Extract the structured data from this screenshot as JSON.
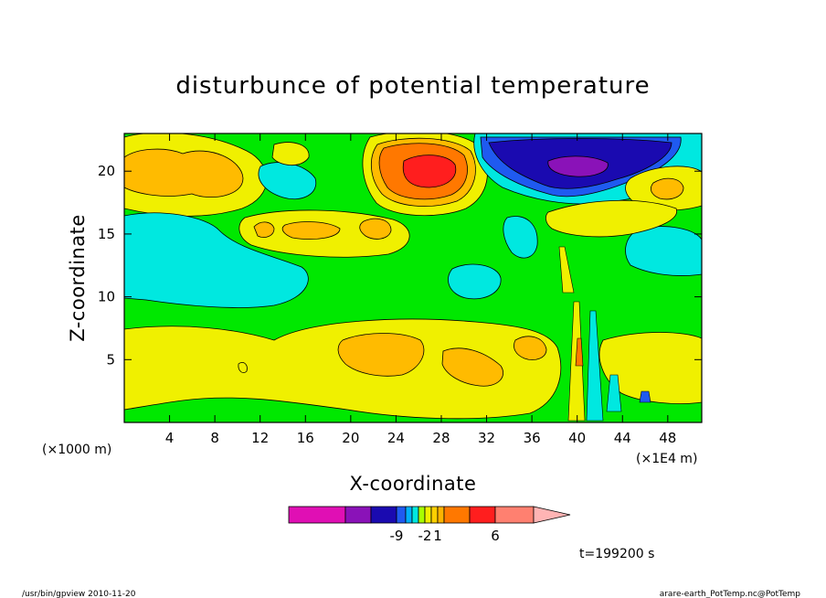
{
  "chart_data": {
    "type": "heatmap",
    "title": "disturbunce of potential temperature",
    "xlabel": "X-coordinate",
    "ylabel": "Z-coordinate",
    "x_unit_left": "(×1000 m)",
    "x_unit_right": "(×1E4 m)",
    "xlim": [
      0,
      51
    ],
    "ylim": [
      0,
      23
    ],
    "x_ticks": [
      4,
      8,
      12,
      16,
      20,
      24,
      28,
      32,
      36,
      40,
      44,
      48
    ],
    "y_ticks": [
      5,
      10,
      15,
      20
    ],
    "colorbar": {
      "colors": [
        "#e00fb4",
        "#8a12b8",
        "#1a0ab0",
        "#1f5af0",
        "#00b0ff",
        "#00e8e0",
        "#a8ff00",
        "#f0f000",
        "#ffd000",
        "#ffb400",
        "#ff7800",
        "#ff1e1e",
        "#ff8070",
        "#ffb4b4"
      ],
      "tick_labels": [
        {
          "label": "-9",
          "index": 2
        },
        {
          "label": "-2",
          "index": 6
        },
        {
          "label": "1",
          "index": 8
        },
        {
          "label": "6",
          "index": 11
        }
      ]
    },
    "time_label": "t=199200 s"
  },
  "footer": {
    "left": "/usr/bin/gpview   2010-11-20",
    "right": "arare-earth_PotTemp.nc@PotTemp"
  }
}
